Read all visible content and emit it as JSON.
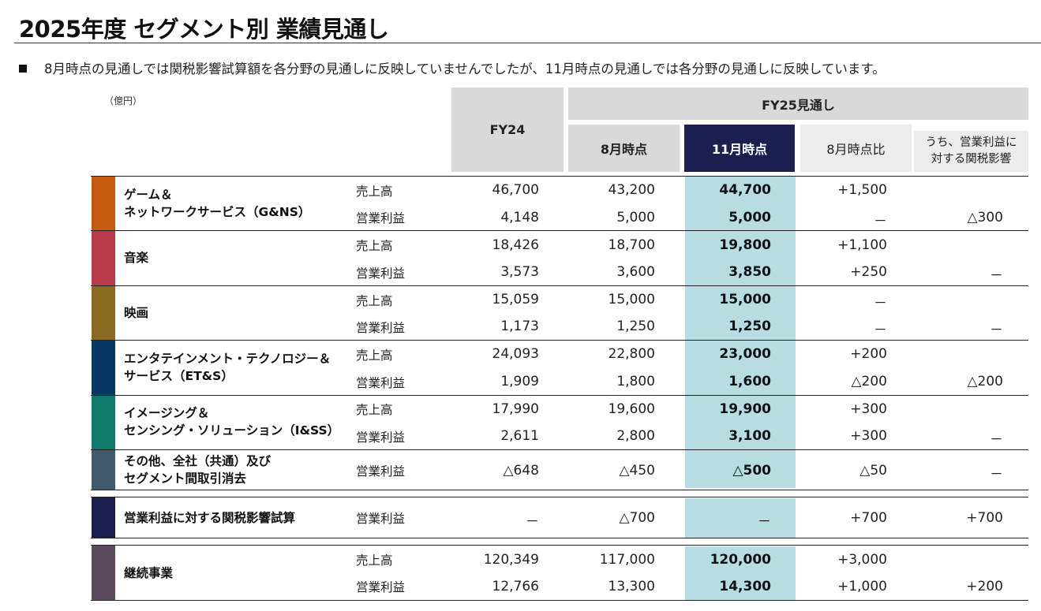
{
  "title": "2025年度 セグメント別 業績見通し",
  "note": "8月時点の見通しでは関税影響試算額を各分野の見通しに反映していませんでしたが、11月時点の見通しでは各分野の見通しに反映しています。",
  "unit": "（億円）",
  "headers": {
    "fy24": "FY24",
    "fy25": "FY25見通し",
    "aug": "8月時点",
    "nov": "11月時点",
    "vs_aug": "8月時点比",
    "tariff_line1": "うち、営業利益に",
    "tariff_line2": "対する関税影響"
  },
  "colors": {
    "header_gray": "#d9d9d9",
    "header_navy": "#1c1f4f",
    "highlight_column": "#b7dde3"
  },
  "segments": [
    {
      "name_lines": [
        "ゲーム＆",
        "ネットワークサービス（G&NS）"
      ],
      "color": "#c55a11",
      "rows": [
        {
          "label": "売上高",
          "fy24": "46,700",
          "aug": "43,200",
          "nov": "44,700",
          "vs_aug": "+1,500",
          "tariff": ""
        },
        {
          "label": "営業利益",
          "fy24": "4,148",
          "aug": "5,000",
          "nov": "5,000",
          "vs_aug": "－",
          "tariff": "△300"
        }
      ]
    },
    {
      "name_lines": [
        "音楽"
      ],
      "color": "#b83b4b",
      "rows": [
        {
          "label": "売上高",
          "fy24": "18,426",
          "aug": "18,700",
          "nov": "19,800",
          "vs_aug": "+1,100",
          "tariff": ""
        },
        {
          "label": "営業利益",
          "fy24": "3,573",
          "aug": "3,600",
          "nov": "3,850",
          "vs_aug": "+250",
          "tariff": "－"
        }
      ]
    },
    {
      "name_lines": [
        "映画"
      ],
      "color": "#8b6a23",
      "rows": [
        {
          "label": "売上高",
          "fy24": "15,059",
          "aug": "15,000",
          "nov": "15,000",
          "vs_aug": "－",
          "tariff": ""
        },
        {
          "label": "営業利益",
          "fy24": "1,173",
          "aug": "1,250",
          "nov": "1,250",
          "vs_aug": "－",
          "tariff": "－"
        }
      ]
    },
    {
      "name_lines": [
        "エンタテインメント・テクノロジー＆",
        "サービス（ET&S）"
      ],
      "color": "#073763",
      "rows": [
        {
          "label": "売上高",
          "fy24": "24,093",
          "aug": "22,800",
          "nov": "23,000",
          "vs_aug": "+200",
          "tariff": ""
        },
        {
          "label": "営業利益",
          "fy24": "1,909",
          "aug": "1,800",
          "nov": "1,600",
          "vs_aug": "△200",
          "tariff": "△200"
        }
      ]
    },
    {
      "name_lines": [
        "イメージング＆",
        "センシング・ソリューション（I&SS）"
      ],
      "color": "#0e7a67",
      "rows": [
        {
          "label": "売上高",
          "fy24": "17,990",
          "aug": "19,600",
          "nov": "19,900",
          "vs_aug": "+300",
          "tariff": ""
        },
        {
          "label": "営業利益",
          "fy24": "2,611",
          "aug": "2,800",
          "nov": "3,100",
          "vs_aug": "+300",
          "tariff": "－"
        }
      ]
    },
    {
      "name_lines": [
        "その他、全社（共通）及び",
        "セグメント間取引消去"
      ],
      "color": "#435a6e",
      "rows": [
        {
          "label": "営業利益",
          "fy24": "△648",
          "aug": "△450",
          "nov": "△500",
          "vs_aug": "△50",
          "tariff": "－"
        }
      ]
    },
    {
      "name_lines": [
        "営業利益に対する関税影響試算"
      ],
      "color": "#1c1f4f",
      "rows": [
        {
          "label": "営業利益",
          "fy24": "－",
          "aug": "△700",
          "nov": "－",
          "vs_aug": "+700",
          "tariff": "+700"
        }
      ]
    },
    {
      "name_lines": [
        "継続事業"
      ],
      "color": "#5e4a5e",
      "rows": [
        {
          "label": "売上高",
          "fy24": "120,349",
          "aug": "117,000",
          "nov": "120,000",
          "vs_aug": "+3,000",
          "tariff": ""
        },
        {
          "label": "営業利益",
          "fy24": "12,766",
          "aug": "13,300",
          "nov": "14,300",
          "vs_aug": "+1,000",
          "tariff": "+200"
        }
      ]
    }
  ]
}
